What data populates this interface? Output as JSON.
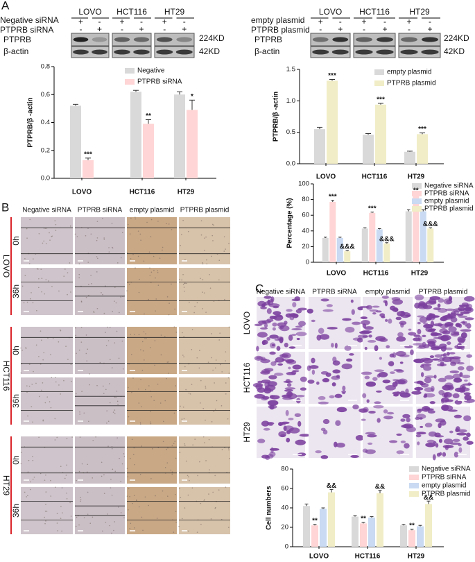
{
  "panel_labels": [
    "A",
    "B",
    "C"
  ],
  "signs": {
    "plus": "+",
    "minus": "-"
  },
  "blots": [
    {
      "row_labels": [
        "Negative siRNA",
        "PTPRB siRNA"
      ],
      "protein_labels": [
        "PTPRB",
        "β-actin"
      ],
      "sizes": [
        "224KD",
        "42KD"
      ],
      "cell_lines": [
        "LOVO",
        "HCT116",
        "HT29"
      ]
    },
    {
      "row_labels": [
        "empty plasmid",
        "PTPRB plasmid"
      ],
      "protein_labels": [
        "PTPRB",
        "β-actin"
      ],
      "sizes": [
        "224KD",
        "42KD"
      ],
      "cell_lines": [
        "LOVO",
        "HCT116",
        "HT29"
      ]
    }
  ],
  "migration": {
    "columns": [
      "Negative siRNA",
      "PTPRB siRNA",
      "empty plasmid",
      "PTPRB plasmid"
    ],
    "cell_lines": [
      "LOVO",
      "HCT116",
      "HT29"
    ],
    "times": [
      "0h",
      "36h"
    ]
  },
  "invasion": {
    "columns": [
      "Negative siRNA",
      "PTPRB siRNA",
      "empty plasmid",
      "PTPRB plasmid"
    ],
    "cell_lines": [
      "LOVO",
      "HCT116",
      "HT29"
    ]
  },
  "chart_data": [
    {
      "type": "bar",
      "y_label": "PTPRB/β -actin",
      "categories": [
        "LOVO",
        "HCT116",
        "HT29"
      ],
      "ylim": [
        0,
        0.8
      ],
      "yticks": [
        {
          "value": 0,
          "label": "0.0"
        },
        {
          "value": 0.2,
          "label": "0.2"
        },
        {
          "value": 0.4,
          "label": "0.4"
        },
        {
          "value": 0.6,
          "label": "0.6"
        },
        {
          "value": 0.8,
          "label": "0.8"
        }
      ],
      "series": [
        {
          "name": "Negative",
          "color": "#d9d9d9",
          "values": [
            0.52,
            0.62,
            0.6
          ],
          "errors": [
            0.01,
            0.01,
            0.02
          ]
        },
        {
          "name": "PTPRB siRNA",
          "color": "#ffd5d5",
          "values": [
            0.13,
            0.39,
            0.49
          ],
          "errors": [
            0.015,
            0.03,
            0.07
          ],
          "significance": [
            "***",
            "**",
            "*"
          ]
        }
      ]
    },
    {
      "type": "bar",
      "y_label": "PTPRB/β -actin",
      "categories": [
        "LOVO",
        "HCT116",
        "HT29"
      ],
      "ylim": [
        0,
        1.5
      ],
      "yticks": [
        {
          "value": 0,
          "label": "0.0"
        },
        {
          "value": 0.5,
          "label": "0.5"
        },
        {
          "value": 1,
          "label": "1.0"
        },
        {
          "value": 1.5,
          "label": "1.5"
        }
      ],
      "series": [
        {
          "name": "empty plasmid",
          "color": "#d9d9d9",
          "values": [
            0.55,
            0.46,
            0.19
          ],
          "errors": [
            0.03,
            0.02,
            0.01
          ]
        },
        {
          "name": "PTPRB plasmid",
          "color": "#f1edc6",
          "values": [
            1.32,
            0.94,
            0.47
          ],
          "errors": [
            0.02,
            0.02,
            0.02
          ],
          "significance": [
            "***",
            "***",
            "***"
          ]
        }
      ]
    },
    {
      "type": "bar",
      "y_label": "Percentage (%)",
      "categories": [
        "LOVO",
        "HCT116",
        "HT29"
      ],
      "ylim": [
        0,
        100
      ],
      "yticks": [
        0,
        20,
        40,
        60,
        80,
        100
      ],
      "series": [
        {
          "name": "Negative siRNA",
          "color": "#d9d9d9",
          "values": [
            31,
            43,
            65
          ],
          "errors": [
            1,
            1,
            2
          ]
        },
        {
          "name": "PTPRB siRNA",
          "color": "#ffd5d5",
          "values": [
            77,
            63,
            86
          ],
          "errors": [
            2,
            1,
            1
          ],
          "significance": [
            "***",
            "***",
            "**"
          ]
        },
        {
          "name": "empty plasmid",
          "color": "#c9daf2",
          "values": [
            31,
            42,
            65
          ],
          "errors": [
            1,
            1,
            2
          ]
        },
        {
          "name": "PTPRB plasmid",
          "color": "#f1edc6",
          "values": [
            14,
            24,
            43
          ],
          "errors": [
            1,
            1,
            1
          ],
          "significance": [
            "&&&",
            "&&&",
            "&&&"
          ]
        }
      ]
    },
    {
      "type": "bar",
      "y_label": "Cell numbers",
      "categories": [
        "LOVO",
        "HCT116",
        "HT29"
      ],
      "ylim": [
        0,
        80
      ],
      "yticks": [
        0,
        20,
        40,
        60,
        80
      ],
      "series": [
        {
          "name": "Negative siRNA",
          "color": "#d9d9d9",
          "values": [
            42,
            31,
            22
          ],
          "errors": [
            2,
            1,
            1
          ]
        },
        {
          "name": "PTPRB siRNA",
          "color": "#ffd5d5",
          "values": [
            22,
            24,
            17
          ],
          "errors": [
            1,
            1,
            1
          ],
          "significance": [
            "**",
            "**",
            "**"
          ]
        },
        {
          "name": "empty plasmid",
          "color": "#c9daf2",
          "values": [
            39,
            30,
            21
          ],
          "errors": [
            1,
            1,
            1
          ]
        },
        {
          "name": "PTPRB plasmid",
          "color": "#f1edc6",
          "values": [
            56,
            55,
            44
          ],
          "errors": [
            3,
            3,
            3
          ],
          "significance": [
            "&&",
            "&&",
            "&&"
          ]
        }
      ]
    }
  ]
}
